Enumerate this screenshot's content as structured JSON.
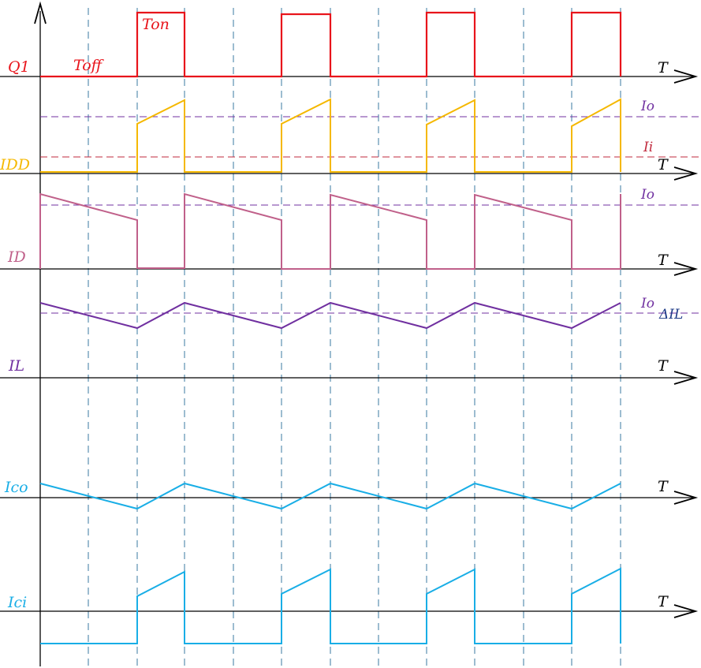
{
  "labels": {
    "q1": "Q1",
    "toff": "Toff",
    "ton": "Ton",
    "idd": "IDD",
    "id": "ID",
    "il": "IL",
    "ico": "Ico",
    "ici": "Ici",
    "io": "Io",
    "ii": "Ii",
    "delta_il": "ΔIL",
    "t_axis": "T"
  },
  "colors": {
    "q1": "#e8141b",
    "idd": "#f5b800",
    "id": "#c0608a",
    "il": "#7030a0",
    "ic": "#19aee6",
    "grid": "#3a7aa0",
    "io_ref": "#7030a0",
    "ii_ref": "#c0283c",
    "delta_il": "#1f3c88",
    "axis": "#000000"
  }
}
